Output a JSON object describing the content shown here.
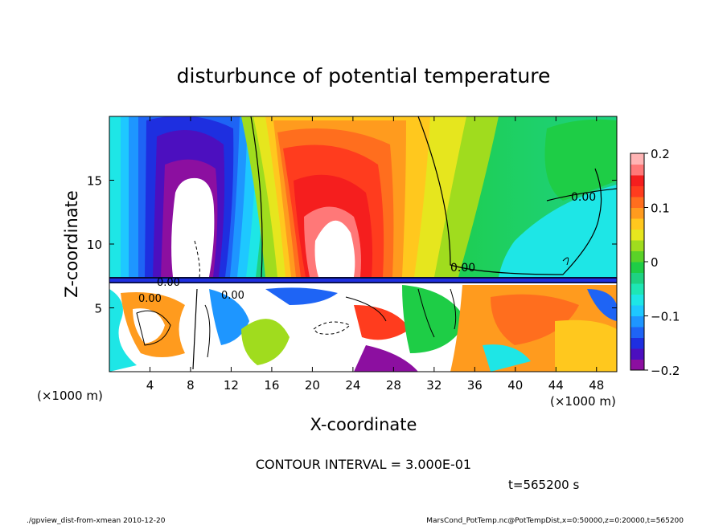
{
  "chart_data": {
    "type": "heatmap",
    "title": "disturbunce of potential temperature",
    "xlabel": "X-coordinate",
    "ylabel": "Z-coordinate",
    "x_unit": "(×1000 m)",
    "x_unit_right": "(×1000 m)",
    "xlim": [
      0,
      50
    ],
    "ylim": [
      0,
      20
    ],
    "x_ticks": [
      4,
      8,
      12,
      16,
      20,
      24,
      28,
      32,
      36,
      40,
      44,
      48
    ],
    "y_ticks": [
      5,
      10,
      15
    ],
    "colorbar": {
      "min": -0.2,
      "max": 0.2,
      "ticks": [
        {
          "value": 0.2,
          "label": "0.2"
        },
        {
          "value": 0.1,
          "label": "0.1"
        },
        {
          "value": 0,
          "label": "0"
        },
        {
          "value": -0.1,
          "label": "−0.1"
        },
        {
          "value": -0.2,
          "label": "−0.2"
        }
      ],
      "colors": [
        "#8c0fa0",
        "#4c0fbf",
        "#1e2fe0",
        "#1e64f5",
        "#1e96ff",
        "#1ec8ff",
        "#1ee6e6",
        "#1ee6b4",
        "#1ed282",
        "#1ecd46",
        "#5ad228",
        "#a0dc1e",
        "#e6e61e",
        "#ffc81e",
        "#ff9b1e",
        "#ff6e1e",
        "#ff3c1e",
        "#f51e1e",
        "#ff7878",
        "#ffb4b4"
      ]
    },
    "contour_labels": [
      "0.00",
      "0.00",
      "0.00",
      "0.00",
      "0.00"
    ],
    "contour_interval": "CONTOUR INTERVAL = 3.000E-01",
    "time_label": "t=565200 s"
  },
  "footer": {
    "left": "./gpview_dist-from-xmean  2010-12-20",
    "right": "MarsCond_PotTemp.nc@PotTempDist,x=0:50000,z=0:20000,t=565200"
  }
}
